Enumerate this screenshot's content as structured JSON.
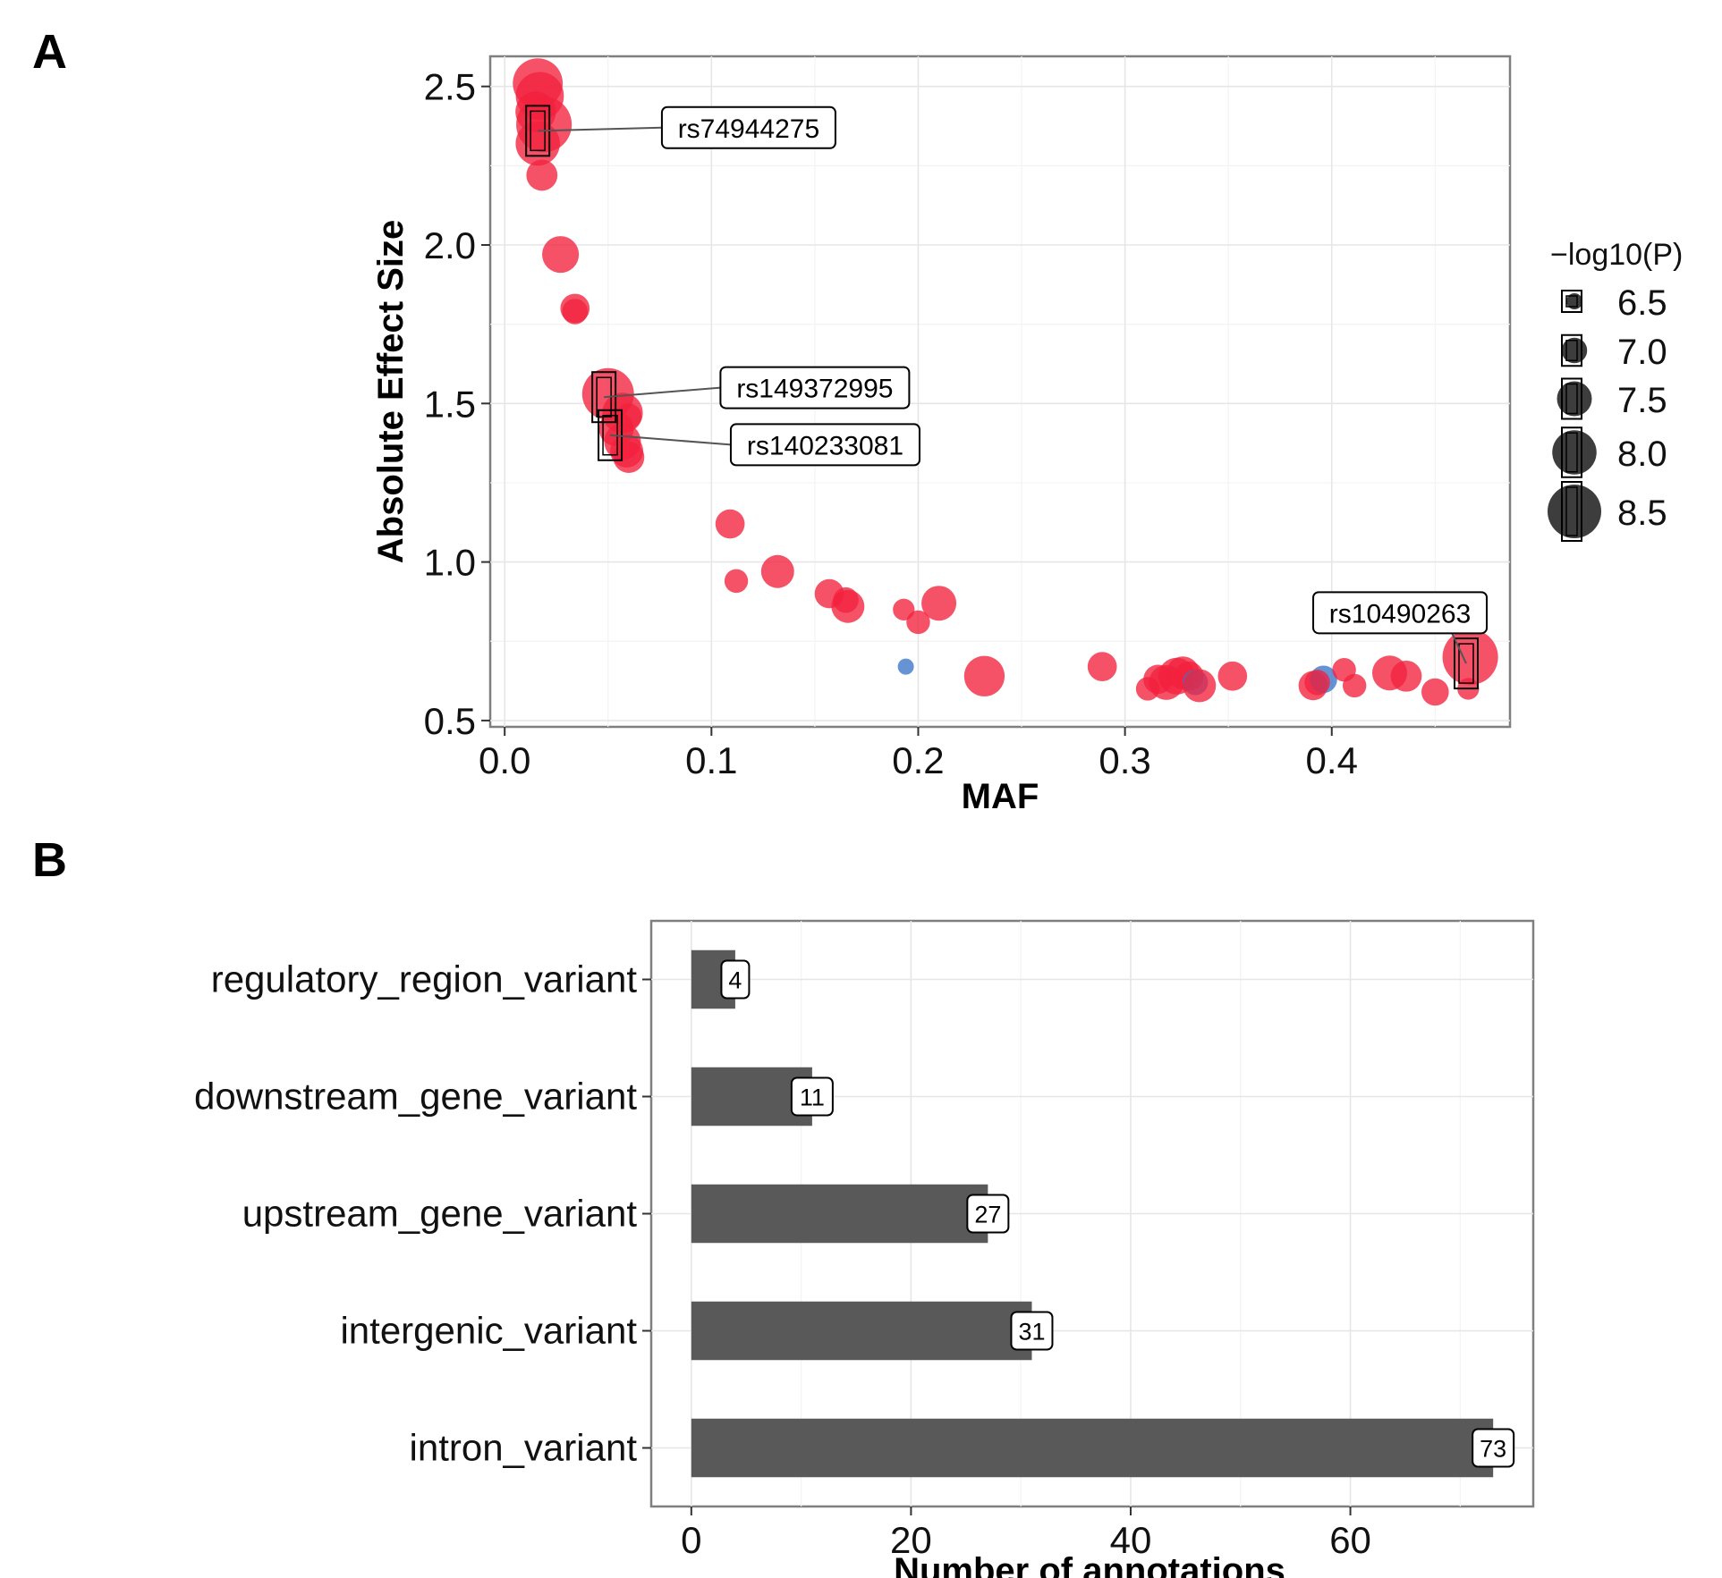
{
  "chart_data": [
    {
      "panel": "A",
      "type": "scatter",
      "xlabel": "MAF",
      "ylabel": "Absolute Effect Size",
      "xlim": [
        -0.007,
        0.4862
      ],
      "ylim": [
        0.48,
        2.595
      ],
      "xticks": [
        0.0,
        0.1,
        0.2,
        0.3,
        0.4
      ],
      "xtick_labels": [
        "0.0",
        "0.1",
        "0.2",
        "0.3",
        "0.4"
      ],
      "yticks": [
        0.5,
        1.0,
        1.5,
        2.0,
        2.5
      ],
      "ytick_labels": [
        "0.5",
        "1.0",
        "1.5",
        "2.0",
        "2.5"
      ],
      "grid": true,
      "legend": {
        "title": "−log10(P)",
        "placement": "right",
        "sizes": [
          6.5,
          7.0,
          7.5,
          8.0,
          8.5
        ],
        "labels": [
          "6.5",
          "7.0",
          "7.5",
          "8.0",
          "8.5"
        ]
      },
      "colors": {
        "red": "#f2213d",
        "blue": "#3b74c8"
      },
      "points": [
        {
          "x": 0.016,
          "y": 2.51,
          "p": 8.3,
          "c": "red"
        },
        {
          "x": 0.017,
          "y": 2.47,
          "p": 8.2,
          "c": "red"
        },
        {
          "x": 0.015,
          "y": 2.42,
          "p": 7.8,
          "c": "red"
        },
        {
          "x": 0.019,
          "y": 2.38,
          "p": 8.6,
          "c": "red"
        },
        {
          "x": 0.016,
          "y": 2.32,
          "p": 8.0,
          "c": "red"
        },
        {
          "x": 0.018,
          "y": 2.22,
          "p": 7.3,
          "c": "red"
        },
        {
          "x": 0.027,
          "y": 1.97,
          "p": 7.6,
          "c": "red"
        },
        {
          "x": 0.034,
          "y": 1.8,
          "p": 7.2,
          "c": "red"
        },
        {
          "x": 0.034,
          "y": 1.79,
          "p": 7.0,
          "c": "red"
        },
        {
          "x": 0.05,
          "y": 1.53,
          "p": 8.4,
          "c": "red"
        },
        {
          "x": 0.057,
          "y": 1.47,
          "p": 7.8,
          "c": "red"
        },
        {
          "x": 0.06,
          "y": 1.46,
          "p": 7.0,
          "c": "red"
        },
        {
          "x": 0.054,
          "y": 1.42,
          "p": 7.5,
          "c": "red"
        },
        {
          "x": 0.057,
          "y": 1.38,
          "p": 7.6,
          "c": "red"
        },
        {
          "x": 0.059,
          "y": 1.35,
          "p": 7.4,
          "c": "red"
        },
        {
          "x": 0.06,
          "y": 1.33,
          "p": 7.3,
          "c": "red"
        },
        {
          "x": 0.109,
          "y": 1.12,
          "p": 7.2,
          "c": "red"
        },
        {
          "x": 0.112,
          "y": 0.94,
          "p": 6.9,
          "c": "red"
        },
        {
          "x": 0.132,
          "y": 0.97,
          "p": 7.4,
          "c": "red"
        },
        {
          "x": 0.157,
          "y": 0.9,
          "p": 7.2,
          "c": "red"
        },
        {
          "x": 0.165,
          "y": 0.88,
          "p": 7.0,
          "c": "red"
        },
        {
          "x": 0.166,
          "y": 0.86,
          "p": 7.4,
          "c": "red"
        },
        {
          "x": 0.193,
          "y": 0.85,
          "p": 6.8,
          "c": "red"
        },
        {
          "x": 0.2,
          "y": 0.81,
          "p": 6.9,
          "c": "red"
        },
        {
          "x": 0.21,
          "y": 0.87,
          "p": 7.5,
          "c": "red"
        },
        {
          "x": 0.194,
          "y": 0.67,
          "p": 6.5,
          "c": "blue"
        },
        {
          "x": 0.232,
          "y": 0.64,
          "p": 7.8,
          "c": "red"
        },
        {
          "x": 0.289,
          "y": 0.67,
          "p": 7.2,
          "c": "red"
        },
        {
          "x": 0.311,
          "y": 0.6,
          "p": 6.9,
          "c": "red"
        },
        {
          "x": 0.316,
          "y": 0.63,
          "p": 7.2,
          "c": "red"
        },
        {
          "x": 0.32,
          "y": 0.62,
          "p": 7.5,
          "c": "red"
        },
        {
          "x": 0.325,
          "y": 0.64,
          "p": 7.6,
          "c": "red"
        },
        {
          "x": 0.328,
          "y": 0.65,
          "p": 7.4,
          "c": "red"
        },
        {
          "x": 0.331,
          "y": 0.64,
          "p": 7.2,
          "c": "red"
        },
        {
          "x": 0.334,
          "y": 0.62,
          "p": 7.0,
          "c": "blue"
        },
        {
          "x": 0.336,
          "y": 0.61,
          "p": 7.4,
          "c": "red"
        },
        {
          "x": 0.352,
          "y": 0.64,
          "p": 7.2,
          "c": "red"
        },
        {
          "x": 0.391,
          "y": 0.61,
          "p": 7.2,
          "c": "red"
        },
        {
          "x": 0.396,
          "y": 0.63,
          "p": 7.1,
          "c": "blue"
        },
        {
          "x": 0.393,
          "y": 0.62,
          "p": 7.0,
          "c": "red"
        },
        {
          "x": 0.406,
          "y": 0.66,
          "p": 6.9,
          "c": "red"
        },
        {
          "x": 0.411,
          "y": 0.61,
          "p": 6.9,
          "c": "red"
        },
        {
          "x": 0.428,
          "y": 0.65,
          "p": 7.5,
          "c": "red"
        },
        {
          "x": 0.436,
          "y": 0.64,
          "p": 7.3,
          "c": "red"
        },
        {
          "x": 0.45,
          "y": 0.59,
          "p": 7.1,
          "c": "red"
        },
        {
          "x": 0.466,
          "y": 0.6,
          "p": 6.8,
          "c": "red"
        },
        {
          "x": 0.467,
          "y": 0.7,
          "p": 8.6,
          "c": "red"
        }
      ],
      "annotations": [
        {
          "text": "rs74944275",
          "x": 0.016,
          "y": 2.36,
          "lx": 0.118,
          "ly": 2.37
        },
        {
          "text": "rs149372995",
          "x": 0.048,
          "y": 1.52,
          "lx": 0.15,
          "ly": 1.55
        },
        {
          "text": "rs140233081",
          "x": 0.051,
          "y": 1.4,
          "lx": 0.155,
          "ly": 1.37
        },
        {
          "text": "rs10490263",
          "x": 0.465,
          "y": 0.68,
          "lx": 0.433,
          "ly": 0.84
        }
      ]
    },
    {
      "panel": "B",
      "type": "bar",
      "orientation": "horizontal",
      "xlabel": "Number of annotations",
      "categories": [
        "regulatory_region_variant",
        "downstream_gene_variant",
        "upstream_gene_variant",
        "intergenic_variant",
        "intron_variant"
      ],
      "values": [
        4,
        11,
        27,
        31,
        73
      ],
      "value_labels": [
        "4",
        "11",
        "27",
        "31",
        "73"
      ],
      "xlim": [
        -3.65,
        76.65
      ],
      "xticks": [
        0,
        20,
        40,
        60
      ],
      "xtick_labels": [
        "0",
        "20",
        "40",
        "60"
      ],
      "grid": true,
      "bar_color": "#595959"
    }
  ]
}
